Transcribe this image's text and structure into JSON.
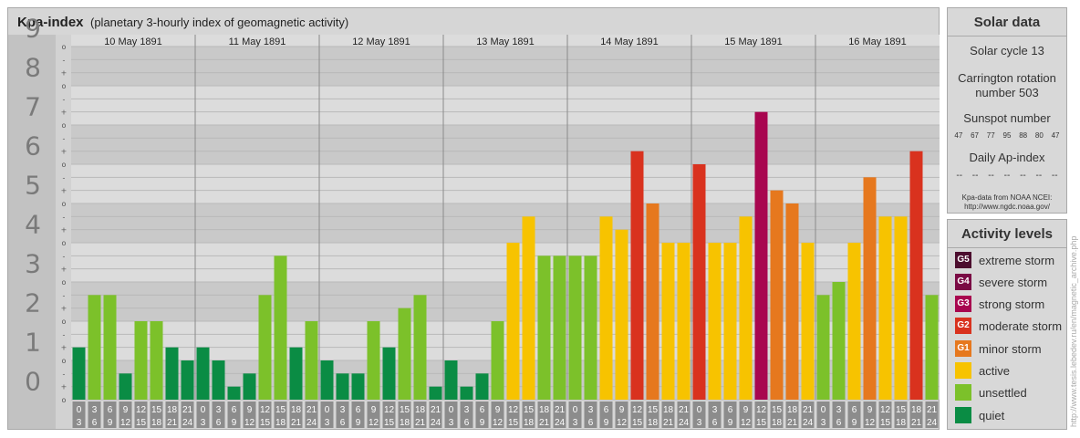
{
  "chart_title": "Kpa-index",
  "chart_subtitle": "(planetary 3-hourly index of geomagnetic activity)",
  "chart_data": {
    "type": "bar",
    "title": "Kpa-index",
    "subtitle": "(planetary 3-hourly index of geomagnetic activity)",
    "ylim": [
      0,
      9
    ],
    "y_ticks": [
      "0",
      "1",
      "2",
      "3",
      "4",
      "5",
      "6",
      "7",
      "8",
      "9"
    ],
    "minor_ticks": [
      "o",
      "+",
      "-",
      "o",
      "+",
      "-",
      "o",
      "+",
      "-",
      "o",
      "+",
      "-",
      "o",
      "+",
      "-",
      "o",
      "+",
      "-",
      "o",
      "+",
      "-",
      "o",
      "+",
      "-",
      "o",
      "+",
      "-",
      "o"
    ],
    "days": [
      "10 May 1891",
      "11 May 1891",
      "12 May 1891",
      "13 May 1891",
      "14 May 1891",
      "15 May 1891",
      "16 May 1891"
    ],
    "interval_labels": [
      [
        "0",
        "3"
      ],
      [
        "3",
        "6"
      ],
      [
        "6",
        "9"
      ],
      [
        "9",
        "12"
      ],
      [
        "12",
        "15"
      ],
      [
        "15",
        "18"
      ],
      [
        "18",
        "21"
      ],
      [
        "21",
        "24"
      ]
    ],
    "values": [
      [
        1.333,
        2.667,
        2.667,
        0.667,
        2.0,
        2.0,
        1.333,
        1.0
      ],
      [
        1.333,
        1.0,
        0.333,
        0.667,
        2.667,
        3.667,
        1.333,
        2.0
      ],
      [
        1.0,
        0.667,
        0.667,
        2.0,
        1.333,
        2.333,
        2.667,
        0.333
      ],
      [
        1.0,
        0.333,
        0.667,
        2.0,
        4.0,
        4.667,
        3.667,
        3.667
      ],
      [
        3.667,
        3.667,
        4.667,
        4.333,
        6.333,
        5.0,
        4.0,
        4.0
      ],
      [
        6.0,
        4.0,
        4.0,
        4.667,
        7.333,
        5.333,
        5.0,
        4.0
      ],
      [
        2.667,
        3.0,
        4.0,
        5.667,
        4.667,
        4.667,
        6.333,
        2.667
      ]
    ],
    "grid": true
  },
  "solar": {
    "title": "Solar data",
    "cycle": "Solar cycle 13",
    "carrington_line1": "Carrington rotation",
    "carrington_line2": "number 503",
    "sunspot_title": "Sunspot number",
    "sunspots": [
      "47",
      "67",
      "77",
      "95",
      "88",
      "80",
      "47"
    ],
    "ap_title": "Daily Ap-index",
    "ap_values": [
      "--",
      "--",
      "--",
      "--",
      "--",
      "--",
      "--"
    ],
    "source_line1": "Kpa-data from NOAA NCEI:",
    "source_line2": "http://www.ngdc.noaa.gov/"
  },
  "activity": {
    "title": "Activity levels",
    "levels": [
      {
        "code": "G5",
        "label": "extreme storm",
        "color": "#4c0d2e"
      },
      {
        "code": "G4",
        "label": "severe storm",
        "color": "#7a0a44"
      },
      {
        "code": "G3",
        "label": "strong storm",
        "color": "#a8064f"
      },
      {
        "code": "G2",
        "label": "moderate storm",
        "color": "#d9321e"
      },
      {
        "code": "G1",
        "label": "minor storm",
        "color": "#e6781e"
      },
      {
        "code": "",
        "label": "active",
        "color": "#f7c300"
      },
      {
        "code": "",
        "label": "unsettled",
        "color": "#7cc12a"
      },
      {
        "code": "",
        "label": "quiet",
        "color": "#0a8c44"
      }
    ]
  },
  "watermark": "http://www.tesis.lebedev.ru/en/magnetic_archive.php"
}
